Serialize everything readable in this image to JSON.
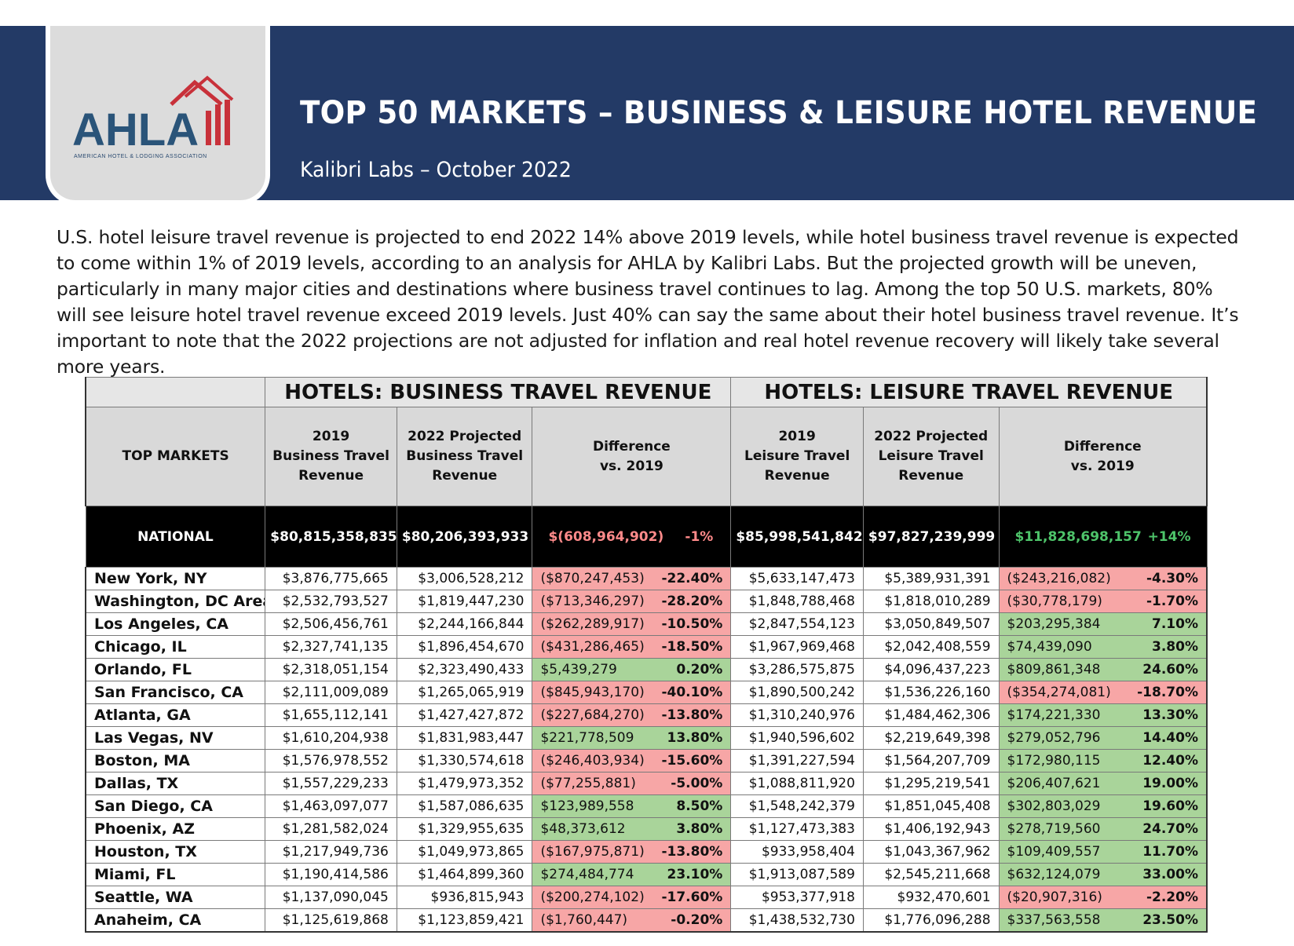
{
  "header": {
    "logo_text": "AHLA",
    "logo_subtext": "AMERICAN HOTEL & LODGING ASSOCIATION",
    "title": "TOP 50 MARKETS – BUSINESS & LEISURE HOTEL REVENUE",
    "subtitle": "Kalibri Labs – October 2022",
    "banner_color": "#233a66",
    "logo_red": "#c8313a",
    "logo_blue": "#2a5479"
  },
  "intro": "U.S. hotel leisure travel revenue is projected to end 2022 14% above 2019 levels, while hotel business travel revenue is expected to come within 1% of 2019 levels, according to an analysis for AHLA by Kalibri Labs. But the projected growth will be uneven, particularly in many major cities and destinations where business travel continues to lag. Among the top 50 U.S. markets, 80% will see leisure hotel travel revenue exceed 2019 levels. Just 40% can say the same about their hotel business travel revenue. It’s important to note that the 2022 projections are not adjusted for inflation and real hotel revenue recovery will likely take several more years.",
  "table": {
    "group_business": "HOTELS: BUSINESS TRAVEL REVENUE",
    "group_leisure": "HOTELS: LEISURE TRAVEL REVENUE",
    "col_market": "TOP MARKETS",
    "col_b2019": [
      "2019",
      "Business Travel",
      "Revenue"
    ],
    "col_b2022": [
      "2022 Projected",
      "Business Travel",
      "Revenue"
    ],
    "col_bdiff": [
      "Difference",
      "vs. 2019"
    ],
    "col_l2019": [
      "2019",
      "Leisure Travel",
      "Revenue"
    ],
    "col_l2022": [
      "2022 Projected",
      "Leisure Travel",
      "Revenue"
    ],
    "col_ldiff": [
      "Difference",
      "vs. 2019"
    ],
    "national": {
      "name": "NATIONAL",
      "b2019": "$80,815,358,835",
      "b2022": "$80,206,393,933",
      "bdiff": "$(608,964,902)",
      "bpct": "-1%",
      "l2019": "$85,998,541,842",
      "l2022": "$97,827,239,999",
      "ldiff": "$11,828,698,157",
      "lpct": "+14%"
    },
    "colors": {
      "negative": "#f7a6a6",
      "positive": "#a9d49a"
    },
    "rows": [
      {
        "name": "New York, NY",
        "b2019": "$3,876,775,665",
        "b2022": "$3,006,528,212",
        "bdiff": "($870,247,453)",
        "bpct": "-22.40%",
        "bneg": true,
        "l2019": "$5,633,147,473",
        "l2022": "$5,389,931,391",
        "ldiff": "($243,216,082)",
        "lpct": "-4.30%",
        "lneg": true
      },
      {
        "name": "Washington, DC Area",
        "b2019": "$2,532,793,527",
        "b2022": "$1,819,447,230",
        "bdiff": "($713,346,297)",
        "bpct": "-28.20%",
        "bneg": true,
        "l2019": "$1,848,788,468",
        "l2022": "$1,818,010,289",
        "ldiff": "($30,778,179)",
        "lpct": "-1.70%",
        "lneg": true
      },
      {
        "name": "Los Angeles, CA",
        "b2019": "$2,506,456,761",
        "b2022": "$2,244,166,844",
        "bdiff": "($262,289,917)",
        "bpct": "-10.50%",
        "bneg": true,
        "l2019": "$2,847,554,123",
        "l2022": "$3,050,849,507",
        "ldiff": "$203,295,384",
        "lpct": "7.10%",
        "lneg": false
      },
      {
        "name": "Chicago, IL",
        "b2019": "$2,327,741,135",
        "b2022": "$1,896,454,670",
        "bdiff": "($431,286,465)",
        "bpct": "-18.50%",
        "bneg": true,
        "l2019": "$1,967,969,468",
        "l2022": "$2,042,408,559",
        "ldiff": "$74,439,090",
        "lpct": "3.80%",
        "lneg": false
      },
      {
        "name": "Orlando, FL",
        "b2019": "$2,318,051,154",
        "b2022": "$2,323,490,433",
        "bdiff": "$5,439,279",
        "bpct": "0.20%",
        "bneg": false,
        "l2019": "$3,286,575,875",
        "l2022": "$4,096,437,223",
        "ldiff": "$809,861,348",
        "lpct": "24.60%",
        "lneg": false
      },
      {
        "name": "San Francisco, CA",
        "b2019": "$2,111,009,089",
        "b2022": "$1,265,065,919",
        "bdiff": "($845,943,170)",
        "bpct": "-40.10%",
        "bneg": true,
        "l2019": "$1,890,500,242",
        "l2022": "$1,536,226,160",
        "ldiff": "($354,274,081)",
        "lpct": "-18.70%",
        "lneg": true
      },
      {
        "name": "Atlanta, GA",
        "b2019": "$1,655,112,141",
        "b2022": "$1,427,427,872",
        "bdiff": "($227,684,270)",
        "bpct": "-13.80%",
        "bneg": true,
        "l2019": "$1,310,240,976",
        "l2022": "$1,484,462,306",
        "ldiff": "$174,221,330",
        "lpct": "13.30%",
        "lneg": false
      },
      {
        "name": "Las Vegas, NV",
        "b2019": "$1,610,204,938",
        "b2022": "$1,831,983,447",
        "bdiff": "$221,778,509",
        "bpct": "13.80%",
        "bneg": false,
        "l2019": "$1,940,596,602",
        "l2022": "$2,219,649,398",
        "ldiff": "$279,052,796",
        "lpct": "14.40%",
        "lneg": false
      },
      {
        "name": "Boston, MA",
        "b2019": "$1,576,978,552",
        "b2022": "$1,330,574,618",
        "bdiff": "($246,403,934)",
        "bpct": "-15.60%",
        "bneg": true,
        "l2019": "$1,391,227,594",
        "l2022": "$1,564,207,709",
        "ldiff": "$172,980,115",
        "lpct": "12.40%",
        "lneg": false
      },
      {
        "name": "Dallas, TX",
        "b2019": "$1,557,229,233",
        "b2022": "$1,479,973,352",
        "bdiff": "($77,255,881)",
        "bpct": "-5.00%",
        "bneg": true,
        "l2019": "$1,088,811,920",
        "l2022": "$1,295,219,541",
        "ldiff": "$206,407,621",
        "lpct": "19.00%",
        "lneg": false
      },
      {
        "name": "San Diego, CA",
        "b2019": "$1,463,097,077",
        "b2022": "$1,587,086,635",
        "bdiff": "$123,989,558",
        "bpct": "8.50%",
        "bneg": false,
        "l2019": "$1,548,242,379",
        "l2022": "$1,851,045,408",
        "ldiff": "$302,803,029",
        "lpct": "19.60%",
        "lneg": false
      },
      {
        "name": "Phoenix, AZ",
        "b2019": "$1,281,582,024",
        "b2022": "$1,329,955,635",
        "bdiff": "$48,373,612",
        "bpct": "3.80%",
        "bneg": false,
        "l2019": "$1,127,473,383",
        "l2022": "$1,406,192,943",
        "ldiff": "$278,719,560",
        "lpct": "24.70%",
        "lneg": false
      },
      {
        "name": "Houston, TX",
        "b2019": "$1,217,949,736",
        "b2022": "$1,049,973,865",
        "bdiff": "($167,975,871)",
        "bpct": "-13.80%",
        "bneg": true,
        "l2019": "$933,958,404",
        "l2022": "$1,043,367,962",
        "ldiff": "$109,409,557",
        "lpct": "11.70%",
        "lneg": false
      },
      {
        "name": "Miami, FL",
        "b2019": "$1,190,414,586",
        "b2022": "$1,464,899,360",
        "bdiff": "$274,484,774",
        "bpct": "23.10%",
        "bneg": false,
        "l2019": "$1,913,087,589",
        "l2022": "$2,545,211,668",
        "ldiff": "$632,124,079",
        "lpct": "33.00%",
        "lneg": false
      },
      {
        "name": "Seattle, WA",
        "b2019": "$1,137,090,045",
        "b2022": "$936,815,943",
        "bdiff": "($200,274,102)",
        "bpct": "-17.60%",
        "bneg": true,
        "l2019": "$953,377,918",
        "l2022": "$932,470,601",
        "ldiff": "($20,907,316)",
        "lpct": "-2.20%",
        "lneg": true
      },
      {
        "name": "Anaheim, CA",
        "b2019": "$1,125,619,868",
        "b2022": "$1,123,859,421",
        "bdiff": "($1,760,447)",
        "bpct": "-0.20%",
        "bneg": true,
        "l2019": "$1,438,532,730",
        "l2022": "$1,776,096,288",
        "ldiff": "$337,563,558",
        "lpct": "23.50%",
        "lneg": false
      }
    ]
  }
}
